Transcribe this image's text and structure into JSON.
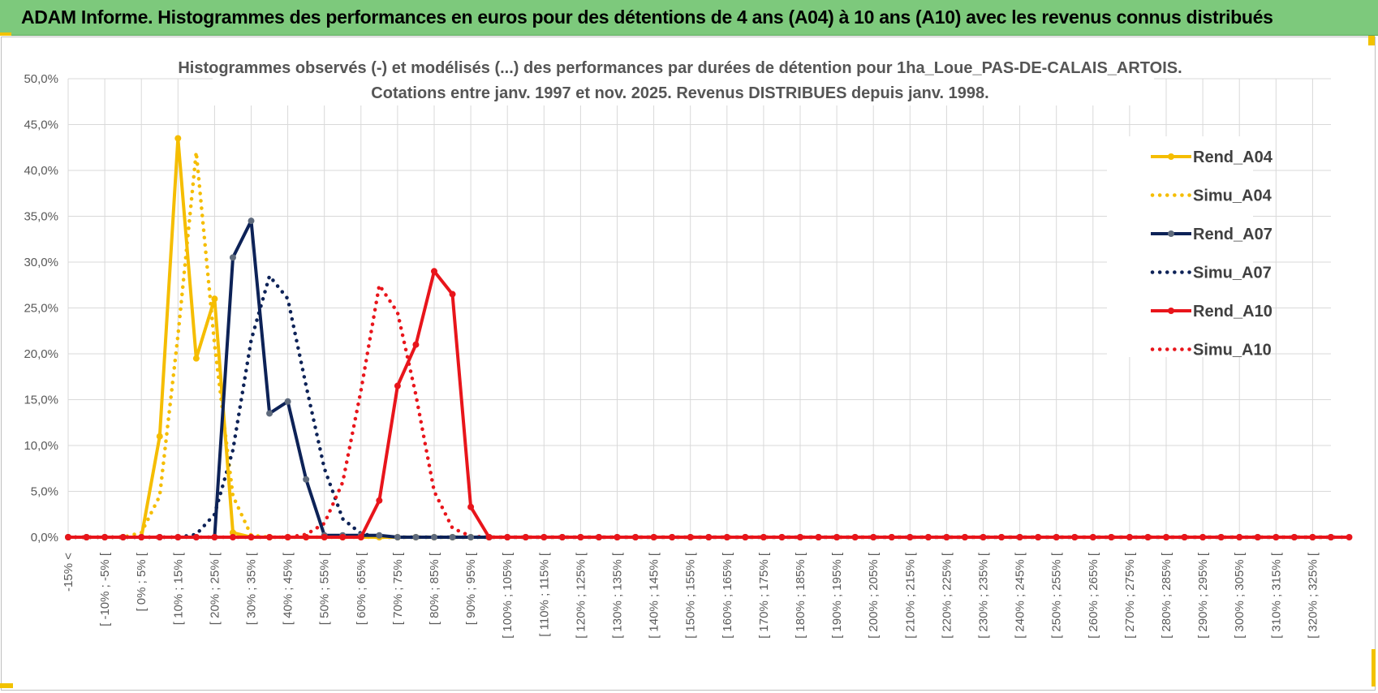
{
  "header": {
    "title": "ADAM Informe. Histogrammes des performances en euros pour des détentions de 4 ans (A04) à 10 ans (A10) avec les revenus connus distribués"
  },
  "chart_data": {
    "type": "line",
    "title": "Histogrammes observés (-) et modélisés (...) des performances par durées de détention pour 1ha_Loue_PAS-DE-CALAIS_ARTOIS.",
    "subtitle": "Cotations entre janv. 1997 et nov. 2025. Revenus DISTRIBUES depuis janv. 1998.",
    "xlabel": "",
    "ylabel": "",
    "ylim": [
      0,
      50
    ],
    "yticks": [
      "0,0%",
      "5,0%",
      "10,0%",
      "15,0%",
      "20,0%",
      "25,0%",
      "30,0%",
      "35,0%",
      "40,0%",
      "45,0%",
      "50,0%"
    ],
    "grid": true,
    "legend_position": "top-right",
    "x_labels": [
      "-15% <",
      "[ -10% ; -5% [",
      "[ 0% ; 5% [",
      "[ 10% ; 15% [",
      "[ 20% ; 25% [",
      "[ 30% ; 35% [",
      "[ 40% ; 45% [",
      "[ 50% ; 55% [",
      "[ 60% ; 65% [",
      "[ 70% ; 75% [",
      "[ 80% ; 85% [",
      "[ 90% ; 95% [",
      "[ 100% ; 105% [",
      "[ 110% ; 115% [",
      "[ 120% ; 125% [",
      "[ 130% ; 135% [",
      "[ 140% ; 145% [",
      "[ 150% ; 155% [",
      "[ 160% ; 165% [",
      "[ 170% ; 175% [",
      "[ 180% ; 185% [",
      "[ 190% ; 195% [",
      "[ 200% ; 205% [",
      "[ 210% ; 215% [",
      "[ 220% ; 225% [",
      "[ 230% ; 235% [",
      "[ 240% ; 245% [",
      "[ 250% ; 255% [",
      "[ 260% ; 265% [",
      "[ 270% ; 275% [",
      "[ 280% ; 285% [",
      "[ 290% ; 295% [",
      "[ 300% ; 305% [",
      "[ 310% ; 315% [",
      "[ 320% ; 325% ["
    ],
    "series": [
      {
        "name": "Rend_A04",
        "style": "solid",
        "color": "#f5bd00",
        "values": [
          0,
          0,
          0,
          0,
          0,
          11,
          43.5,
          19.5,
          26,
          0.5,
          0,
          0,
          0,
          0,
          0,
          0,
          0,
          0,
          0,
          0,
          0,
          0,
          0,
          0,
          0,
          0,
          0,
          0,
          0,
          0,
          0,
          0,
          0,
          0,
          0,
          0,
          0,
          0,
          0,
          0,
          0,
          0,
          0,
          0,
          0,
          0,
          0,
          0,
          0,
          0,
          0,
          0,
          0,
          0,
          0,
          0,
          0,
          0,
          0,
          0,
          0,
          0,
          0,
          0,
          0,
          0,
          0,
          0,
          0,
          0
        ]
      },
      {
        "name": "Simu_A04",
        "style": "dotted",
        "color": "#f5bd00",
        "values": [
          0,
          0,
          0,
          0,
          0.5,
          4.5,
          22,
          42,
          21,
          4.5,
          0.2,
          0,
          0,
          0,
          0,
          0,
          0,
          0,
          0,
          0,
          0,
          0,
          0,
          0,
          0,
          0,
          0,
          0,
          0,
          0,
          0,
          0,
          0,
          0,
          0,
          0,
          0,
          0,
          0,
          0,
          0,
          0,
          0,
          0,
          0,
          0,
          0,
          0,
          0,
          0,
          0,
          0,
          0,
          0,
          0,
          0,
          0,
          0,
          0,
          0,
          0,
          0,
          0,
          0,
          0,
          0,
          0,
          0,
          0,
          0
        ]
      },
      {
        "name": "Rend_A07",
        "style": "solid",
        "color": "#0d2257",
        "values": [
          0,
          0,
          0,
          0,
          0,
          0,
          0,
          0,
          0,
          30.5,
          34.5,
          13.5,
          14.8,
          6.3,
          0.2,
          0.2,
          0.2,
          0.2,
          0,
          0,
          0,
          0,
          0,
          0,
          0,
          0,
          0,
          0,
          0,
          0,
          0,
          0,
          0,
          0,
          0,
          0,
          0,
          0,
          0,
          0,
          0,
          0,
          0,
          0,
          0,
          0,
          0,
          0,
          0,
          0,
          0,
          0,
          0,
          0,
          0,
          0,
          0,
          0,
          0,
          0,
          0,
          0,
          0,
          0,
          0,
          0,
          0,
          0,
          0,
          0
        ]
      },
      {
        "name": "Simu_A07",
        "style": "dotted",
        "color": "#0d2257",
        "values": [
          0,
          0,
          0,
          0,
          0,
          0,
          0,
          0.3,
          2.5,
          9.5,
          21.5,
          28.5,
          26,
          16.5,
          7.5,
          2,
          0.4,
          0,
          0,
          0,
          0,
          0,
          0,
          0,
          0,
          0,
          0,
          0,
          0,
          0,
          0,
          0,
          0,
          0,
          0,
          0,
          0,
          0,
          0,
          0,
          0,
          0,
          0,
          0,
          0,
          0,
          0,
          0,
          0,
          0,
          0,
          0,
          0,
          0,
          0,
          0,
          0,
          0,
          0,
          0,
          0,
          0,
          0,
          0,
          0,
          0,
          0,
          0,
          0,
          0,
          0
        ]
      },
      {
        "name": "Rend_A10",
        "style": "solid",
        "color": "#e8151b",
        "values": [
          0,
          0,
          0,
          0,
          0,
          0,
          0,
          0,
          0,
          0,
          0,
          0,
          0,
          0,
          0,
          0,
          0,
          4,
          16.5,
          21,
          29,
          26.5,
          3.3,
          0,
          0,
          0,
          0,
          0,
          0,
          0,
          0,
          0,
          0,
          0,
          0,
          0,
          0,
          0,
          0,
          0,
          0,
          0,
          0,
          0,
          0,
          0,
          0,
          0,
          0,
          0,
          0,
          0,
          0,
          0,
          0,
          0,
          0,
          0,
          0,
          0,
          0,
          0,
          0,
          0,
          0,
          0,
          0,
          0,
          0,
          0,
          0
        ]
      },
      {
        "name": "Simu_A10",
        "style": "dotted",
        "color": "#e8151b",
        "values": [
          0,
          0,
          0,
          0,
          0,
          0,
          0,
          0,
          0,
          0,
          0,
          0,
          0,
          0.3,
          1.5,
          6,
          16,
          27.5,
          24.5,
          15.5,
          5,
          1,
          0.1,
          0,
          0,
          0,
          0,
          0,
          0,
          0,
          0,
          0,
          0,
          0,
          0,
          0,
          0,
          0,
          0,
          0,
          0,
          0,
          0,
          0,
          0,
          0,
          0,
          0,
          0,
          0,
          0,
          0,
          0,
          0,
          0,
          0,
          0,
          0,
          0,
          0,
          0,
          0,
          0,
          0,
          0,
          0,
          0,
          0,
          0,
          0
        ]
      }
    ]
  }
}
